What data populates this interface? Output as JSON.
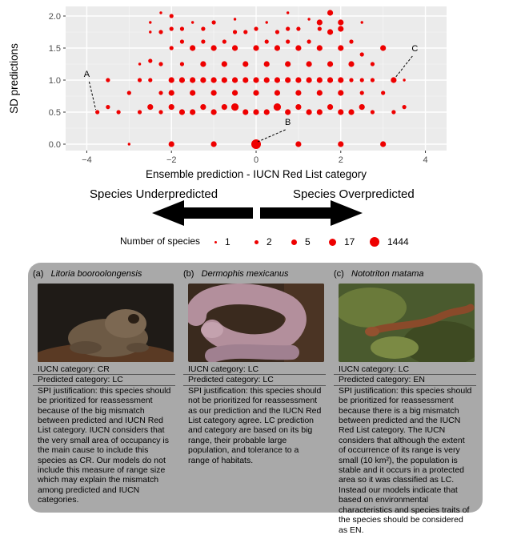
{
  "chart_data": {
    "type": "scatter",
    "xlabel": "Ensemble prediction - IUCN Red List category",
    "ylabel": "SD predictions",
    "xlim": [
      -4.5,
      4.5
    ],
    "ylim": [
      -0.1,
      2.15
    ],
    "x_ticks": [
      "−4",
      "−2",
      "0",
      "2",
      "4"
    ],
    "y_ticks": [
      "0.0",
      "0.5",
      "1.0",
      "1.5",
      "2.0"
    ],
    "x_tick_values": [
      -4,
      -2,
      0,
      2,
      4
    ],
    "y_tick_values": [
      0,
      0.5,
      1.0,
      1.5,
      2.0
    ],
    "grid": true,
    "color": "#ee0000",
    "points": [
      {
        "x": -3.75,
        "y": 0.5,
        "n": 2
      },
      {
        "x": -3.5,
        "y": 1.0,
        "n": 2
      },
      {
        "x": -3.5,
        "y": 0.58,
        "n": 2
      },
      {
        "x": -3.25,
        "y": 0.5,
        "n": 2
      },
      {
        "x": -3.0,
        "y": 0.8,
        "n": 2
      },
      {
        "x": -3.0,
        "y": 0.0,
        "n": 1
      },
      {
        "x": -2.75,
        "y": 1.0,
        "n": 2
      },
      {
        "x": -2.75,
        "y": 0.5,
        "n": 2
      },
      {
        "x": -2.75,
        "y": 1.25,
        "n": 1
      },
      {
        "x": -2.5,
        "y": 1.0,
        "n": 2
      },
      {
        "x": -2.5,
        "y": 0.58,
        "n": 5
      },
      {
        "x": -2.5,
        "y": 1.3,
        "n": 2
      },
      {
        "x": -2.5,
        "y": 1.75,
        "n": 1
      },
      {
        "x": -2.5,
        "y": 1.9,
        "n": 1
      },
      {
        "x": -2.25,
        "y": 1.25,
        "n": 2
      },
      {
        "x": -2.25,
        "y": 0.8,
        "n": 2
      },
      {
        "x": -2.25,
        "y": 0.5,
        "n": 2
      },
      {
        "x": -2.25,
        "y": 1.75,
        "n": 2
      },
      {
        "x": -2.25,
        "y": 2.05,
        "n": 1
      },
      {
        "x": -2.0,
        "y": 1.0,
        "n": 5
      },
      {
        "x": -2.0,
        "y": 1.5,
        "n": 2
      },
      {
        "x": -2.0,
        "y": 0.8,
        "n": 5
      },
      {
        "x": -2.0,
        "y": 0.58,
        "n": 5
      },
      {
        "x": -2.0,
        "y": 0.0,
        "n": 5
      },
      {
        "x": -2.0,
        "y": 1.8,
        "n": 2
      },
      {
        "x": -2.0,
        "y": 2.0,
        "n": 2
      },
      {
        "x": -1.75,
        "y": 1.0,
        "n": 5
      },
      {
        "x": -1.75,
        "y": 1.25,
        "n": 2
      },
      {
        "x": -1.75,
        "y": 0.5,
        "n": 5
      },
      {
        "x": -1.75,
        "y": 1.6,
        "n": 2
      },
      {
        "x": -1.75,
        "y": 1.8,
        "n": 2
      },
      {
        "x": -1.5,
        "y": 1.0,
        "n": 5
      },
      {
        "x": -1.5,
        "y": 1.5,
        "n": 5
      },
      {
        "x": -1.5,
        "y": 0.8,
        "n": 5
      },
      {
        "x": -1.5,
        "y": 0.5,
        "n": 5
      },
      {
        "x": -1.5,
        "y": 1.9,
        "n": 1
      },
      {
        "x": -1.25,
        "y": 1.25,
        "n": 5
      },
      {
        "x": -1.25,
        "y": 1.0,
        "n": 5
      },
      {
        "x": -1.25,
        "y": 0.58,
        "n": 5
      },
      {
        "x": -1.25,
        "y": 1.6,
        "n": 2
      },
      {
        "x": -1.25,
        "y": 1.8,
        "n": 2
      },
      {
        "x": -1.0,
        "y": 1.0,
        "n": 5
      },
      {
        "x": -1.0,
        "y": 1.5,
        "n": 5
      },
      {
        "x": -1.0,
        "y": 0.8,
        "n": 5
      },
      {
        "x": -1.0,
        "y": 0.5,
        "n": 5
      },
      {
        "x": -1.0,
        "y": 0.0,
        "n": 5
      },
      {
        "x": -1.0,
        "y": 1.9,
        "n": 2
      },
      {
        "x": -0.75,
        "y": 1.25,
        "n": 5
      },
      {
        "x": -0.75,
        "y": 1.0,
        "n": 5
      },
      {
        "x": -0.75,
        "y": 0.58,
        "n": 5
      },
      {
        "x": -0.75,
        "y": 1.6,
        "n": 2
      },
      {
        "x": -0.5,
        "y": 1.0,
        "n": 5
      },
      {
        "x": -0.5,
        "y": 1.5,
        "n": 5
      },
      {
        "x": -0.5,
        "y": 0.8,
        "n": 5
      },
      {
        "x": -0.5,
        "y": 0.58,
        "n": 17
      },
      {
        "x": -0.5,
        "y": 1.75,
        "n": 2
      },
      {
        "x": -0.5,
        "y": 1.95,
        "n": 1
      },
      {
        "x": -0.25,
        "y": 1.25,
        "n": 5
      },
      {
        "x": -0.25,
        "y": 1.0,
        "n": 5
      },
      {
        "x": -0.25,
        "y": 0.5,
        "n": 5
      },
      {
        "x": -0.25,
        "y": 1.75,
        "n": 2
      },
      {
        "x": 0.0,
        "y": 1.0,
        "n": 5
      },
      {
        "x": 0.0,
        "y": 1.5,
        "n": 5
      },
      {
        "x": 0.0,
        "y": 0.8,
        "n": 5
      },
      {
        "x": 0.0,
        "y": 0.5,
        "n": 5
      },
      {
        "x": 0.0,
        "y": 0.0,
        "n": 1444
      },
      {
        "x": 0.0,
        "y": 1.8,
        "n": 2
      },
      {
        "x": 0.25,
        "y": 1.25,
        "n": 5
      },
      {
        "x": 0.25,
        "y": 1.0,
        "n": 5
      },
      {
        "x": 0.25,
        "y": 0.5,
        "n": 5
      },
      {
        "x": 0.25,
        "y": 1.6,
        "n": 2
      },
      {
        "x": 0.25,
        "y": 1.9,
        "n": 1
      },
      {
        "x": 0.5,
        "y": 1.0,
        "n": 5
      },
      {
        "x": 0.5,
        "y": 1.5,
        "n": 5
      },
      {
        "x": 0.5,
        "y": 0.8,
        "n": 5
      },
      {
        "x": 0.5,
        "y": 0.58,
        "n": 17
      },
      {
        "x": 0.5,
        "y": 1.75,
        "n": 2
      },
      {
        "x": 0.75,
        "y": 1.25,
        "n": 5
      },
      {
        "x": 0.75,
        "y": 1.0,
        "n": 5
      },
      {
        "x": 0.75,
        "y": 0.5,
        "n": 5
      },
      {
        "x": 0.75,
        "y": 1.6,
        "n": 2
      },
      {
        "x": 0.75,
        "y": 1.8,
        "n": 2
      },
      {
        "x": 0.75,
        "y": 2.05,
        "n": 1
      },
      {
        "x": 1.0,
        "y": 1.0,
        "n": 5
      },
      {
        "x": 1.0,
        "y": 1.5,
        "n": 5
      },
      {
        "x": 1.0,
        "y": 0.8,
        "n": 5
      },
      {
        "x": 1.0,
        "y": 0.58,
        "n": 5
      },
      {
        "x": 1.0,
        "y": 0.0,
        "n": 5
      },
      {
        "x": 1.0,
        "y": 1.8,
        "n": 2
      },
      {
        "x": 1.25,
        "y": 1.25,
        "n": 5
      },
      {
        "x": 1.25,
        "y": 1.0,
        "n": 5
      },
      {
        "x": 1.25,
        "y": 0.5,
        "n": 5
      },
      {
        "x": 1.25,
        "y": 1.6,
        "n": 2
      },
      {
        "x": 1.25,
        "y": 1.95,
        "n": 1
      },
      {
        "x": 1.5,
        "y": 1.0,
        "n": 5
      },
      {
        "x": 1.5,
        "y": 1.5,
        "n": 5
      },
      {
        "x": 1.5,
        "y": 0.8,
        "n": 5
      },
      {
        "x": 1.5,
        "y": 0.5,
        "n": 5
      },
      {
        "x": 1.5,
        "y": 1.9,
        "n": 5
      },
      {
        "x": 1.5,
        "y": 1.8,
        "n": 2
      },
      {
        "x": 1.75,
        "y": 1.25,
        "n": 5
      },
      {
        "x": 1.75,
        "y": 1.0,
        "n": 5
      },
      {
        "x": 1.75,
        "y": 0.58,
        "n": 5
      },
      {
        "x": 1.75,
        "y": 2.05,
        "n": 5
      },
      {
        "x": 1.75,
        "y": 1.75,
        "n": 5
      },
      {
        "x": 2.0,
        "y": 1.0,
        "n": 5
      },
      {
        "x": 2.0,
        "y": 1.5,
        "n": 5
      },
      {
        "x": 2.0,
        "y": 0.8,
        "n": 5
      },
      {
        "x": 2.0,
        "y": 0.5,
        "n": 5
      },
      {
        "x": 2.0,
        "y": 0.0,
        "n": 5
      },
      {
        "x": 2.0,
        "y": 1.8,
        "n": 5
      },
      {
        "x": 2.0,
        "y": 1.9,
        "n": 5
      },
      {
        "x": 2.25,
        "y": 1.25,
        "n": 5
      },
      {
        "x": 2.25,
        "y": 1.0,
        "n": 2
      },
      {
        "x": 2.25,
        "y": 0.5,
        "n": 5
      },
      {
        "x": 2.25,
        "y": 1.6,
        "n": 2
      },
      {
        "x": 2.5,
        "y": 1.0,
        "n": 2
      },
      {
        "x": 2.5,
        "y": 1.4,
        "n": 2
      },
      {
        "x": 2.5,
        "y": 0.8,
        "n": 2
      },
      {
        "x": 2.5,
        "y": 0.58,
        "n": 5
      },
      {
        "x": 2.5,
        "y": 1.9,
        "n": 1
      },
      {
        "x": 2.75,
        "y": 1.25,
        "n": 2
      },
      {
        "x": 2.75,
        "y": 1.0,
        "n": 2
      },
      {
        "x": 2.75,
        "y": 0.5,
        "n": 2
      },
      {
        "x": 3.0,
        "y": 1.5,
        "n": 5
      },
      {
        "x": 3.0,
        "y": 0.8,
        "n": 2
      },
      {
        "x": 3.0,
        "y": 0.0,
        "n": 5
      },
      {
        "x": 3.25,
        "y": 1.0,
        "n": 5
      },
      {
        "x": 3.25,
        "y": 0.5,
        "n": 2
      },
      {
        "x": 3.5,
        "y": 1.0,
        "n": 1
      },
      {
        "x": 3.5,
        "y": 0.58,
        "n": 2
      }
    ],
    "annotations": [
      {
        "label": "A",
        "x": -3.75,
        "y": 0.5,
        "text_x": -4.0,
        "text_y": 1.05
      },
      {
        "label": "B",
        "x": 0.0,
        "y": 0.0,
        "text_x": 0.75,
        "text_y": 0.3
      },
      {
        "label": "C",
        "x": 3.25,
        "y": 1.0,
        "text_x": 3.75,
        "text_y": 1.45
      }
    ]
  },
  "arrows": {
    "left_label": "Species Underpredicted",
    "right_label": "Species Overpredicted"
  },
  "legend": {
    "title": "Number of species",
    "items": [
      {
        "label": "1",
        "n": 1
      },
      {
        "label": "2",
        "n": 2
      },
      {
        "label": "5",
        "n": 5
      },
      {
        "label": "17",
        "n": 17
      },
      {
        "label": "1444",
        "n": 1444
      }
    ]
  },
  "species": [
    {
      "tag": "(a)",
      "name": "Litoria booroolongensis",
      "iucn": "IUCN category: CR",
      "predicted": "Predicted category: LC",
      "justification": "SPI justification: this species should be prioritized for reassessment because of the big mismatch between predicted and IUCN Red List category. IUCN considers that the very small area of occupancy is the main cause to include this species as CR. Our models do not include this measure of range size which may explain the mismatch among predicted and IUCN categories."
    },
    {
      "tag": "(b)",
      "name": "Dermophis mexicanus",
      "iucn": "IUCN category: LC",
      "predicted": "Predicted category: LC",
      "justification": "SPI justification: this species should not be prioritized for reassessment as our prediction and the IUCN Red List category agree. LC prediction and category are based on its big range, their probable large population, and tolerance to a range of habitats."
    },
    {
      "tag": "(c)",
      "name": "Nototriton matama",
      "iucn": "IUCN category: LC",
      "predicted": "Predicted category: EN",
      "justification": "SPI justification: this species should be prioritized for reassessment because there is a big mismatch between predicted and the IUCN Red List category. The IUCN considers that although the extent of occurrence of its range is very small (10 km²), the population is stable and it occurs in a protected area so it was classified as LC. Instead our models indicate that based on environmental characteristics and species traits of the species should be considered as EN."
    }
  ]
}
